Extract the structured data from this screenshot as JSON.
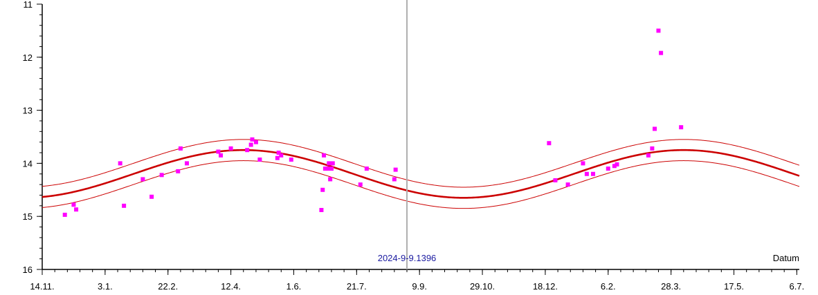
{
  "chart_data": {
    "type": "scatter",
    "title": "",
    "xlabel": "Datum",
    "ylabel": "",
    "y_inverted": true,
    "ylim": [
      11,
      16
    ],
    "xlim_days": [
      0,
      602
    ],
    "yticks": [
      11,
      12,
      13,
      14,
      15,
      16
    ],
    "ytick_labels": [
      "11",
      "12",
      "13",
      "14",
      "15",
      "16"
    ],
    "xticks": [
      {
        "label": "14.11.",
        "day": 0
      },
      {
        "label": "3.1.",
        "day": 50
      },
      {
        "label": "22.2.",
        "day": 100
      },
      {
        "label": "12.4.",
        "day": 150
      },
      {
        "label": "1.6.",
        "day": 200
      },
      {
        "label": "21.7.",
        "day": 250
      },
      {
        "label": "9.9.",
        "day": 300
      },
      {
        "label": "29.10.",
        "day": 350
      },
      {
        "label": "18.12.",
        "day": 400
      },
      {
        "label": "6.2.",
        "day": 450
      },
      {
        "label": "28.3.",
        "day": 500
      },
      {
        "label": "17.5.",
        "day": 550
      },
      {
        "label": "6.7.",
        "day": 600
      }
    ],
    "current_date_label": "2024-9-9.1396",
    "current_date_day": 290,
    "colors": {
      "observation": "#ff00ff",
      "prediction": "#cc0000",
      "marker_line": "#b0b0b0",
      "date_label": "#1a1aa0",
      "axis": "#000000"
    },
    "series": [
      {
        "type": "observations",
        "points": [
          [
            18,
            14.97
          ],
          [
            25,
            14.78
          ],
          [
            27,
            14.87
          ],
          [
            62,
            14.0
          ],
          [
            65,
            14.8
          ],
          [
            80,
            14.3
          ],
          [
            87,
            14.63
          ],
          [
            95,
            14.22
          ],
          [
            108,
            14.15
          ],
          [
            110,
            13.72
          ],
          [
            115,
            14.0
          ],
          [
            140,
            13.78
          ],
          [
            142,
            13.85
          ],
          [
            150,
            13.72
          ],
          [
            163,
            13.75
          ],
          [
            166,
            13.65
          ],
          [
            167,
            13.55
          ],
          [
            170,
            13.6
          ],
          [
            173,
            13.93
          ],
          [
            187,
            13.9
          ],
          [
            188,
            13.8
          ],
          [
            190,
            13.85
          ],
          [
            198,
            13.93
          ],
          [
            222,
            14.88
          ],
          [
            223,
            14.5
          ],
          [
            224,
            13.85
          ],
          [
            225,
            14.1
          ],
          [
            227,
            14.1
          ],
          [
            228,
            14.0
          ],
          [
            229,
            14.3
          ],
          [
            230,
            14.1
          ],
          [
            231,
            14.0
          ],
          [
            253,
            14.4
          ],
          [
            258,
            14.1
          ],
          [
            280,
            14.3
          ],
          [
            281,
            14.12
          ],
          [
            403,
            13.62
          ],
          [
            408,
            14.32
          ],
          [
            418,
            14.4
          ],
          [
            430,
            14.0
          ],
          [
            433,
            14.2
          ],
          [
            438,
            14.2
          ],
          [
            450,
            14.1
          ],
          [
            455,
            14.05
          ],
          [
            457,
            14.02
          ],
          [
            482,
            13.85
          ],
          [
            485,
            13.72
          ],
          [
            487,
            13.35
          ],
          [
            490,
            11.5
          ],
          [
            492,
            11.92
          ],
          [
            508,
            13.32
          ]
        ]
      },
      {
        "type": "prediction",
        "mean": 14.2,
        "amplitude": 0.45,
        "period_days": 350,
        "peak_day": 160,
        "band_offset": 0.2
      }
    ]
  }
}
